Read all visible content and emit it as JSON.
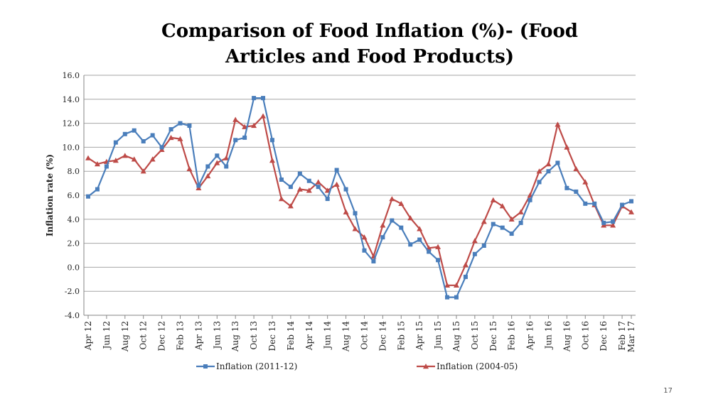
{
  "page_number": "17",
  "chart_data": {
    "type": "line",
    "title": "Comparison of Food Inflation (%)- (Food Articles and Food Products)",
    "xlabel": "",
    "ylabel": "Inflation rate (%)",
    "ylim": [
      -4.0,
      16.0
    ],
    "yticks": [
      "16.0",
      "14.0",
      "12.0",
      "10.0",
      "8.0",
      "6.0",
      "4.0",
      "2.0",
      "0.0",
      "-2.0",
      "-4.0"
    ],
    "grid": true,
    "legend_position": "bottom",
    "x_tick_labels": [
      "Apr 12",
      "Jun 12",
      "Aug 12",
      "Oct 12",
      "Dec 12",
      "Feb 13",
      "Apr 13",
      "Jun 13",
      "Aug 13",
      "Oct 13",
      "Dec 13",
      "Feb 14",
      "Apr 14",
      "Jun 14",
      "Aug 14",
      "Oct 14",
      "Dec 14",
      "Feb 15",
      "Apr 15",
      "Jun 15",
      "Aug 15",
      "Oct 15",
      "Dec 15",
      "Feb 16",
      "Apr 16",
      "Jun 16",
      "Aug 16",
      "Oct 16",
      "Dec 16",
      "Feb 17",
      "Mar 17"
    ],
    "x": [
      "Apr 12",
      "May 12",
      "Jun 12",
      "Jul 12",
      "Aug 12",
      "Sep 12",
      "Oct 12",
      "Nov 12",
      "Dec 12",
      "Jan 13",
      "Feb 13",
      "Mar 13",
      "Apr 13",
      "May 13",
      "Jun 13",
      "Jul 13",
      "Aug 13",
      "Sep 13",
      "Oct 13",
      "Nov 13",
      "Dec 13",
      "Jan 14",
      "Feb 14",
      "Mar 14",
      "Apr 14",
      "May 14",
      "Jun 14",
      "Jul 14",
      "Aug 14",
      "Sep 14",
      "Oct 14",
      "Nov 14",
      "Dec 14",
      "Jan 15",
      "Feb 15",
      "Mar 15",
      "Apr 15",
      "May 15",
      "Jun 15",
      "Jul 15",
      "Aug 15",
      "Sep 15",
      "Oct 15",
      "Nov 15",
      "Dec 15",
      "Jan 16",
      "Feb 16",
      "Mar 16",
      "Apr 16",
      "May 16",
      "Jun 16",
      "Jul 16",
      "Aug 16",
      "Sep 16",
      "Oct 16",
      "Nov 16",
      "Dec 16",
      "Jan 17",
      "Feb 17",
      "Mar 17"
    ],
    "series": [
      {
        "name": "Inflation (2011-12)",
        "color": "#4a7ebb",
        "marker": "square",
        "values": [
          5.9,
          6.5,
          8.4,
          10.4,
          11.1,
          11.4,
          10.5,
          11.0,
          10.0,
          11.5,
          12.0,
          11.8,
          6.8,
          8.4,
          9.3,
          8.4,
          10.6,
          10.8,
          14.1,
          14.1,
          10.6,
          7.3,
          6.7,
          7.8,
          7.2,
          6.7,
          5.7,
          8.1,
          6.5,
          4.5,
          1.4,
          0.5,
          2.5,
          3.9,
          3.3,
          1.9,
          2.3,
          1.3,
          0.6,
          -2.5,
          -2.5,
          -0.8,
          1.1,
          1.8,
          3.6,
          3.3,
          2.8,
          3.7,
          5.6,
          7.1,
          8.0,
          8.7,
          6.6,
          6.3,
          5.3,
          5.3,
          3.7,
          3.8,
          5.2,
          5.5
        ]
      },
      {
        "name": "Inflation (2004-05)",
        "color": "#be4b48",
        "marker": "triangle",
        "values": [
          9.1,
          8.6,
          8.8,
          8.9,
          9.3,
          9.0,
          8.0,
          9.0,
          9.8,
          10.8,
          10.7,
          8.2,
          6.6,
          7.6,
          8.7,
          9.1,
          12.3,
          11.7,
          11.8,
          12.6,
          8.9,
          5.7,
          5.1,
          6.5,
          6.4,
          7.1,
          6.4,
          6.9,
          4.6,
          3.2,
          2.5,
          0.9,
          3.5,
          5.7,
          5.3,
          4.1,
          3.2,
          1.6,
          1.7,
          -1.5,
          -1.5,
          0.2,
          2.2,
          3.8,
          5.6,
          5.1,
          4.0,
          4.6,
          6.0,
          8.0,
          8.6,
          11.9,
          10.0,
          8.2,
          7.1,
          5.2,
          3.5,
          3.5,
          5.1,
          4.6
        ]
      }
    ]
  }
}
